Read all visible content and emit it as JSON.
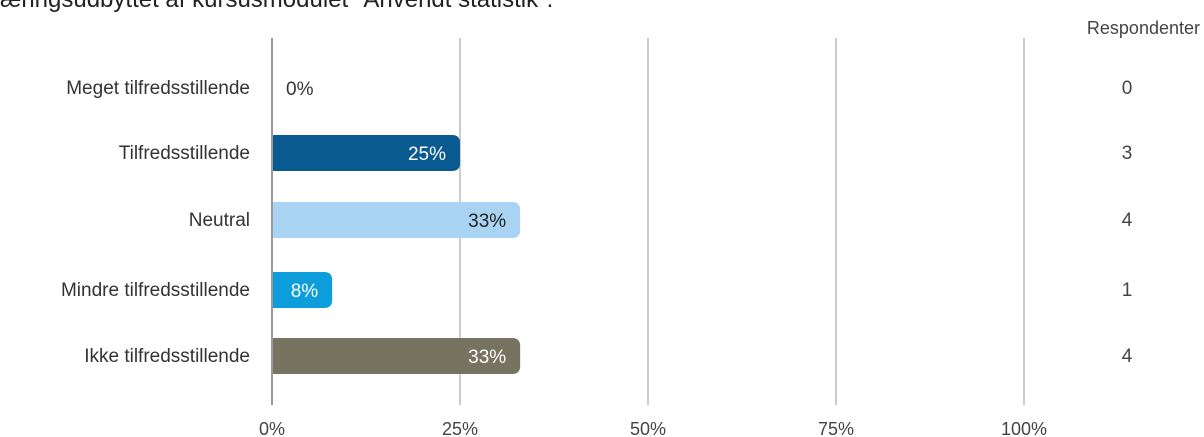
{
  "chart_data": {
    "type": "bar",
    "orientation": "horizontal",
    "title": "æringsudbyttet af kursusmodulet \"Anvendt statistik\".",
    "categories": [
      "Meget tilfredsstillende",
      "Tilfredsstillende",
      "Neutral",
      "Mindre tilfredsstillende",
      "Ikke tilfredsstillende"
    ],
    "values": [
      0,
      25,
      33,
      8,
      33
    ],
    "value_labels": [
      "0%",
      "25%",
      "33%",
      "8%",
      "33%"
    ],
    "respondents_header": "Respondenter",
    "respondents": [
      "0",
      "3",
      "4",
      "1",
      "4"
    ],
    "colors": [
      "#0a5a92",
      "#0a5a92",
      "#a9d3f2",
      "#0d9ddb",
      "#767461"
    ],
    "label_colors": [
      "#333333",
      "#ffffff",
      "#222222",
      "#ffffff",
      "#ffffff"
    ],
    "xlim": [
      0,
      100
    ],
    "xticks": [
      "0%",
      "25%",
      "50%",
      "75%",
      "100%"
    ],
    "grid": true
  }
}
